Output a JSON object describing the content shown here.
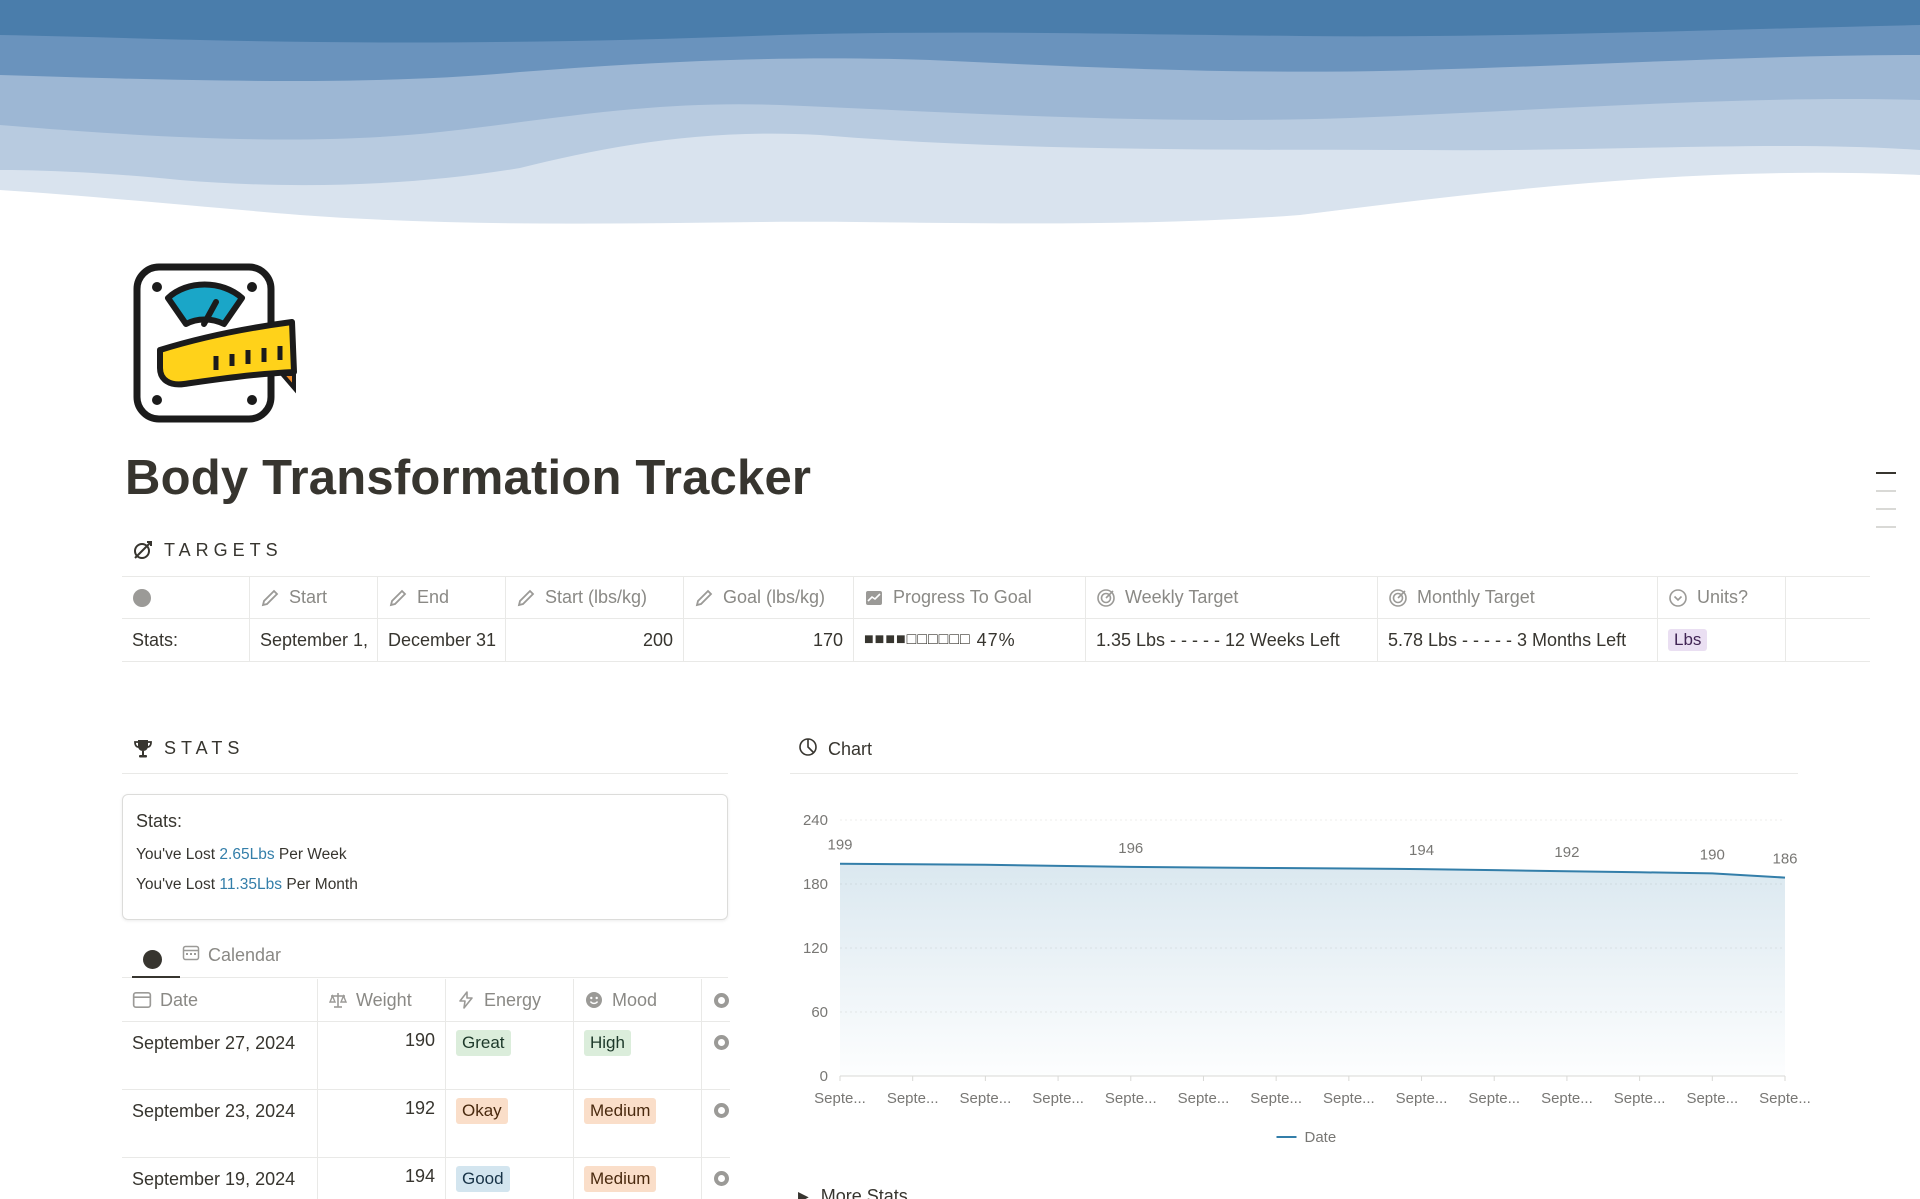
{
  "page": {
    "title": "Body Transformation Tracker",
    "icon": "scale-measuring-tape-icon"
  },
  "targets": {
    "heading": "TARGETS",
    "heading_icon": "target-arrow-icon",
    "columns": [
      {
        "label": "",
        "icon": "circle-icon"
      },
      {
        "label": "Start",
        "icon": "pencil-icon"
      },
      {
        "label": "End",
        "icon": "pencil-icon"
      },
      {
        "label": "Start (lbs/kg)",
        "icon": "pencil-icon"
      },
      {
        "label": "Goal (lbs/kg)",
        "icon": "pencil-icon"
      },
      {
        "label": "Progress To Goal",
        "icon": "trend-icon"
      },
      {
        "label": "Weekly Target",
        "icon": "target-icon"
      },
      {
        "label": "Monthly Target",
        "icon": "target-icon"
      },
      {
        "label": "Units?",
        "icon": "select-icon"
      }
    ],
    "row": {
      "name": "Stats:",
      "start": "September 1,",
      "end": "December 31",
      "start_weight": "200",
      "goal_weight": "170",
      "progress_bar": "■■■■□□□□□□",
      "progress_pct": "47%",
      "progress_value": 0.47,
      "weekly_target": "1.35 Lbs   - - - - -   12 Weeks Left",
      "monthly_target": "5.78 Lbs - - - - - 3 Months Left",
      "units": "Lbs"
    }
  },
  "stats": {
    "heading": "STATS",
    "heading_icon": "trophy-icon",
    "box_title": "Stats:",
    "week_prefix": "You've Lost ",
    "week_value": "2.65Lbs",
    "week_suffix": " Per Week",
    "month_prefix": "You've Lost ",
    "month_value": "11.35Lbs",
    "month_suffix": " Per Month",
    "accent_color": "#337ea9"
  },
  "views": {
    "calendar_label": "Calendar"
  },
  "log": {
    "columns": [
      {
        "label": "Date",
        "icon": "calendar-icon"
      },
      {
        "label": "Weight",
        "icon": "scale-icon"
      },
      {
        "label": "Energy",
        "icon": "bolt-icon"
      },
      {
        "label": "Mood",
        "icon": "smiley-icon"
      }
    ],
    "rows": [
      {
        "date": "September 27, 2024",
        "weight": "190",
        "energy": "Great",
        "mood": "High"
      },
      {
        "date": "September 23, 2024",
        "weight": "192",
        "energy": "Okay",
        "mood": "Medium"
      },
      {
        "date": "September 19, 2024",
        "weight": "194",
        "energy": "Good",
        "mood": "Medium"
      }
    ],
    "tag_colors": {
      "Great": {
        "bg": "#dbeddb",
        "fg": "#1c3829"
      },
      "High": {
        "bg": "#dbeddb",
        "fg": "#1c3829"
      },
      "Okay": {
        "bg": "#fadec9",
        "fg": "#49290e"
      },
      "Medium": {
        "bg": "#fadec9",
        "fg": "#49290e"
      },
      "Good": {
        "bg": "#d3e5ef",
        "fg": "#183347"
      }
    }
  },
  "chart_header": {
    "title": "Chart",
    "icon": "pie-chart-icon"
  },
  "chart_data": {
    "type": "area",
    "x": [
      "Septe...",
      "Septe...",
      "Septe...",
      "Septe...",
      "Septe...",
      "Septe...",
      "Septe...",
      "Septe...",
      "Septe...",
      "Septe...",
      "Septe...",
      "Septe...",
      "Septe...",
      "Septe..."
    ],
    "series": [
      {
        "name": "Date",
        "values": [
          199,
          198.5,
          198,
          197,
          196,
          195.5,
          195,
          194.5,
          194,
          193,
          192,
          191,
          190,
          186
        ]
      }
    ],
    "data_labels": [
      {
        "index": 0,
        "text": "199"
      },
      {
        "index": 4,
        "text": "196"
      },
      {
        "index": 8,
        "text": "194"
      },
      {
        "index": 10,
        "text": "192"
      },
      {
        "index": 12,
        "text": "190"
      },
      {
        "index": 13,
        "text": "186"
      }
    ],
    "ylim": [
      0,
      240
    ],
    "yticks": [
      "0",
      "60",
      "120",
      "180",
      "240"
    ],
    "grid": true,
    "legend": "bottom-center",
    "line_color": "#337ea9"
  },
  "footer": {
    "more_stats": "More Stats"
  }
}
